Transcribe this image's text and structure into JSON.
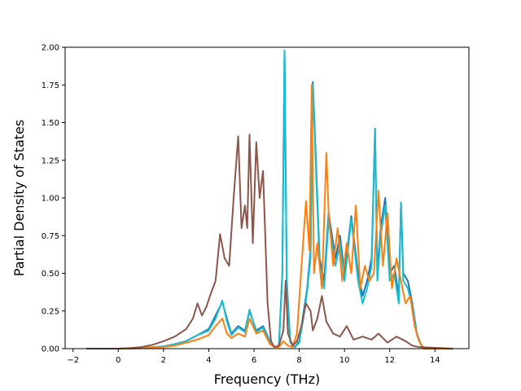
{
  "chart_data": {
    "type": "line",
    "title": "",
    "xlabel": "Frequency (THz)",
    "ylabel": "Partial Density of States",
    "xlim": [
      -2.35,
      15.5
    ],
    "ylim": [
      0,
      2.0
    ],
    "xticks": [
      -2,
      0,
      2,
      4,
      6,
      8,
      10,
      12,
      14
    ],
    "xtick_labels": [
      "−2",
      "0",
      "2",
      "4",
      "6",
      "8",
      "10",
      "12",
      "14"
    ],
    "yticks": [
      0,
      0.25,
      0.5,
      0.75,
      1.0,
      1.25,
      1.5,
      1.75,
      2.0
    ],
    "ytick_labels": [
      "0.00",
      "0.25",
      "0.50",
      "0.75",
      "1.00",
      "1.25",
      "1.50",
      "1.75",
      "2.00"
    ],
    "grid": false,
    "legend": false,
    "series": [
      {
        "color": "#1f77b4",
        "x": [
          -1.4,
          0,
          1,
          2,
          2.5,
          3,
          3.5,
          4,
          4.3,
          4.6,
          4.8,
          5.0,
          5.3,
          5.6,
          5.8,
          6.1,
          6.4,
          6.7,
          6.9,
          7.1,
          7.25,
          7.35,
          7.45,
          7.6,
          7.8,
          8.0,
          8.2,
          8.35,
          8.5,
          8.6,
          8.7,
          8.9,
          9.1,
          9.3,
          9.6,
          9.8,
          10.0,
          10.3,
          10.6,
          10.8,
          11.0,
          11.2,
          11.35,
          11.45,
          11.6,
          11.8,
          12.0,
          12.2,
          12.4,
          12.5,
          12.6,
          12.8,
          13.0,
          13.2,
          13.4,
          13.6,
          14.8
        ],
        "y": [
          0,
          0,
          0.003,
          0.015,
          0.03,
          0.05,
          0.09,
          0.13,
          0.22,
          0.31,
          0.2,
          0.1,
          0.15,
          0.12,
          0.25,
          0.12,
          0.15,
          0.05,
          0.01,
          0.02,
          0.5,
          1.98,
          0.45,
          0.05,
          0.01,
          0.05,
          0.25,
          0.4,
          0.65,
          1.77,
          1.4,
          0.6,
          0.45,
          0.9,
          0.6,
          0.75,
          0.5,
          0.88,
          0.5,
          0.35,
          0.45,
          0.6,
          1.46,
          0.5,
          0.8,
          1.0,
          0.5,
          0.55,
          0.35,
          0.97,
          0.5,
          0.45,
          0.3,
          0.1,
          0.02,
          0,
          0
        ]
      },
      {
        "color": "#17becf",
        "x": [
          -1.4,
          0,
          1,
          2,
          2.5,
          3,
          3.5,
          4,
          4.3,
          4.6,
          4.8,
          5.0,
          5.3,
          5.6,
          5.8,
          6.1,
          6.4,
          6.7,
          6.9,
          7.1,
          7.25,
          7.35,
          7.45,
          7.6,
          7.8,
          8.0,
          8.2,
          8.35,
          8.5,
          8.6,
          8.7,
          8.9,
          9.1,
          9.3,
          9.6,
          9.8,
          10.0,
          10.3,
          10.6,
          10.8,
          11.0,
          11.2,
          11.35,
          11.45,
          11.6,
          11.8,
          12.0,
          12.2,
          12.4,
          12.5,
          12.6,
          12.8,
          13.0,
          13.2,
          13.4,
          13.6,
          14.8
        ],
        "y": [
          0,
          0,
          0.003,
          0.015,
          0.03,
          0.05,
          0.09,
          0.12,
          0.2,
          0.32,
          0.18,
          0.09,
          0.14,
          0.11,
          0.26,
          0.11,
          0.14,
          0.04,
          0.01,
          0.02,
          0.48,
          1.98,
          0.42,
          0.04,
          0.01,
          0.04,
          0.22,
          0.38,
          0.6,
          1.75,
          1.35,
          0.55,
          0.4,
          0.85,
          0.55,
          0.7,
          0.45,
          0.86,
          0.45,
          0.3,
          0.4,
          0.55,
          1.46,
          0.45,
          0.75,
          0.95,
          0.45,
          0.5,
          0.3,
          0.97,
          0.45,
          0.4,
          0.28,
          0.09,
          0.02,
          0,
          0
        ]
      },
      {
        "color": "#ff7f0e",
        "x": [
          -1.4,
          0,
          1,
          2,
          2.5,
          3,
          3.5,
          4,
          4.3,
          4.6,
          4.8,
          5.0,
          5.3,
          5.6,
          5.8,
          6.1,
          6.4,
          6.7,
          6.9,
          7.1,
          7.3,
          7.5,
          7.7,
          7.9,
          8.1,
          8.3,
          8.45,
          8.55,
          8.65,
          8.8,
          9.0,
          9.2,
          9.3,
          9.5,
          9.7,
          9.9,
          10.1,
          10.3,
          10.5,
          10.7,
          10.9,
          11.1,
          11.3,
          11.5,
          11.7,
          11.9,
          12.1,
          12.3,
          12.5,
          12.7,
          12.9,
          13.1,
          13.3,
          13.5,
          14.8
        ],
        "y": [
          0,
          0,
          0.002,
          0.01,
          0.02,
          0.04,
          0.06,
          0.09,
          0.15,
          0.2,
          0.1,
          0.07,
          0.1,
          0.08,
          0.2,
          0.1,
          0.12,
          0.03,
          0.01,
          0.01,
          0.05,
          0.02,
          0.01,
          0.1,
          0.55,
          0.98,
          0.65,
          1.75,
          0.5,
          0.7,
          0.4,
          1.3,
          0.9,
          0.55,
          0.8,
          0.45,
          0.7,
          0.5,
          0.95,
          0.4,
          0.55,
          0.45,
          0.5,
          1.05,
          0.55,
          0.9,
          0.4,
          0.6,
          0.45,
          0.3,
          0.35,
          0.15,
          0.05,
          0,
          0
        ]
      },
      {
        "color": "#8c564b",
        "x": [
          -1.4,
          0,
          0.5,
          1,
          1.5,
          2,
          2.5,
          3,
          3.3,
          3.5,
          3.7,
          3.9,
          4.1,
          4.3,
          4.5,
          4.7,
          4.9,
          5.1,
          5.3,
          5.45,
          5.6,
          5.7,
          5.8,
          5.95,
          6.1,
          6.25,
          6.4,
          6.6,
          6.75,
          6.9,
          7.1,
          7.3,
          7.4,
          7.5,
          7.7,
          7.9,
          8.1,
          8.3,
          8.5,
          8.6,
          8.8,
          9.0,
          9.2,
          9.5,
          9.8,
          10.1,
          10.4,
          10.8,
          11.2,
          11.5,
          11.9,
          12.3,
          12.7,
          13.0,
          13.3,
          14.8
        ],
        "y": [
          0,
          0,
          0.003,
          0.01,
          0.025,
          0.05,
          0.08,
          0.13,
          0.2,
          0.3,
          0.22,
          0.28,
          0.37,
          0.45,
          0.76,
          0.6,
          0.55,
          1.0,
          1.41,
          0.8,
          0.95,
          0.8,
          1.42,
          0.7,
          1.37,
          1.0,
          1.18,
          0.3,
          0.05,
          0.01,
          0.02,
          0.12,
          0.45,
          0.1,
          0.02,
          0.05,
          0.15,
          0.3,
          0.25,
          0.12,
          0.2,
          0.35,
          0.18,
          0.1,
          0.08,
          0.15,
          0.06,
          0.08,
          0.06,
          0.1,
          0.04,
          0.08,
          0.05,
          0.02,
          0.01,
          0
        ]
      }
    ]
  }
}
